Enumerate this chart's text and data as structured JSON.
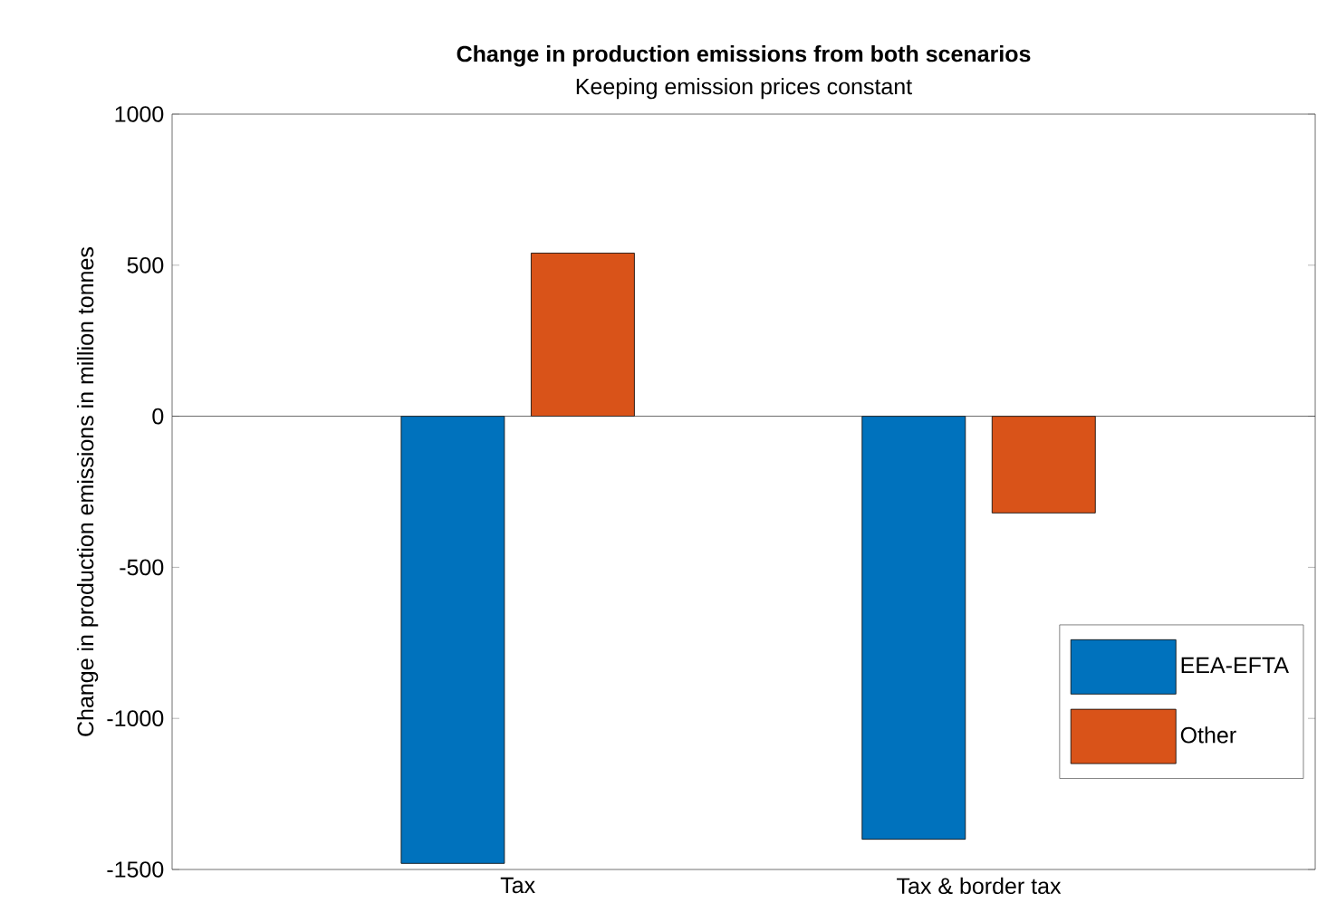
{
  "chart_data": {
    "type": "bar",
    "title": "Change in production emissions from both scenarios",
    "subtitle": "Keeping emission prices constant",
    "ylabel": "Change in production emissions in million tonnes",
    "categories": [
      "Tax",
      "Tax & border tax"
    ],
    "series": [
      {
        "name": "EEA-EFTA",
        "color": "#0072bd",
        "values": [
          -1480,
          -1400
        ]
      },
      {
        "name": "Other",
        "color": "#d95319",
        "values": [
          540,
          -320
        ]
      }
    ],
    "ylim": [
      -1500,
      1000
    ],
    "yticks": [
      -1500,
      -1000,
      -500,
      0,
      500,
      1000
    ],
    "ref_lines": [
      {
        "axis": "y",
        "value": 0
      }
    ],
    "grid": false,
    "legend": "bottom right"
  }
}
